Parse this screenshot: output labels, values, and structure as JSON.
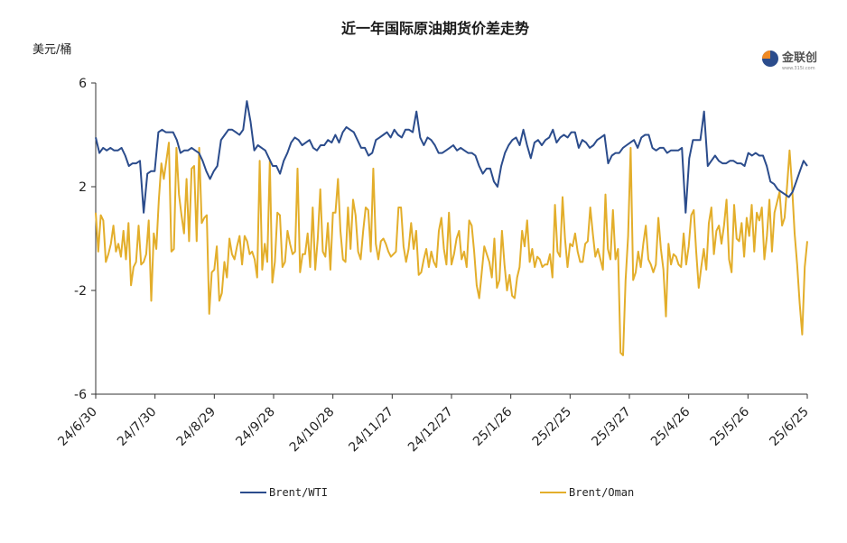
{
  "chart_data": {
    "type": "line",
    "title": "近一年国际原油期货价差走势",
    "ylabel": "美元/桶",
    "ylim": [
      -6,
      6
    ],
    "yticks": [
      6,
      2,
      -2,
      -6
    ],
    "xlabel": "",
    "x_tick_labels": [
      "24/6/30",
      "24/7/30",
      "24/8/29",
      "24/9/28",
      "24/10/28",
      "24/11/27",
      "24/12/27",
      "25/1/26",
      "25/2/25",
      "25/3/27",
      "25/4/26",
      "25/5/26",
      "25/6/25"
    ],
    "legend_position": "bottom",
    "grid": false,
    "series": [
      {
        "name": "Brent/WTI",
        "color": "#2B4C8C",
        "values": [
          3.9,
          3.3,
          3.5,
          3.4,
          3.5,
          3.4,
          3.4,
          3.5,
          3.2,
          2.8,
          2.9,
          2.9,
          3.0,
          1.0,
          2.5,
          2.6,
          2.6,
          4.1,
          4.2,
          4.1,
          4.1,
          4.1,
          3.8,
          3.3,
          3.4,
          3.4,
          3.5,
          3.4,
          3.3,
          3.0,
          2.6,
          2.3,
          2.6,
          2.8,
          3.8,
          4.0,
          4.2,
          4.2,
          4.1,
          4.0,
          4.2,
          5.3,
          4.5,
          3.4,
          3.6,
          3.5,
          3.4,
          3.1,
          2.8,
          2.8,
          2.5,
          3.0,
          3.3,
          3.7,
          3.9,
          3.8,
          3.6,
          3.7,
          3.8,
          3.5,
          3.4,
          3.6,
          3.6,
          3.8,
          3.7,
          4.0,
          3.7,
          4.1,
          4.3,
          4.2,
          4.1,
          3.8,
          3.5,
          3.5,
          3.2,
          3.3,
          3.8,
          3.9,
          4.0,
          4.1,
          3.9,
          4.2,
          4.0,
          3.9,
          4.2,
          4.2,
          4.1,
          4.9,
          3.9,
          3.6,
          3.9,
          3.8,
          3.6,
          3.3,
          3.3,
          3.4,
          3.5,
          3.6,
          3.4,
          3.5,
          3.4,
          3.3,
          3.3,
          3.2,
          2.8,
          2.5,
          2.7,
          2.7,
          2.2,
          2.0,
          2.8,
          3.3,
          3.6,
          3.8,
          3.9,
          3.6,
          4.2,
          3.6,
          3.1,
          3.7,
          3.8,
          3.6,
          3.8,
          3.9,
          4.2,
          3.7,
          3.9,
          4.0,
          3.9,
          4.1,
          4.1,
          3.5,
          3.8,
          3.7,
          3.5,
          3.6,
          3.8,
          3.9,
          4.0,
          2.9,
          3.2,
          3.3,
          3.3,
          3.5,
          3.6,
          3.7,
          3.8,
          3.5,
          3.9,
          4.0,
          4.0,
          3.5,
          3.4,
          3.5,
          3.5,
          3.3,
          3.4,
          3.4,
          3.4,
          3.5,
          1.0,
          3.1,
          3.8,
          3.8,
          3.8,
          4.9,
          2.8,
          3.0,
          3.2,
          3.0,
          2.9,
          2.9,
          3.0,
          3.0,
          2.9,
          2.9,
          2.8,
          3.3,
          3.2,
          3.3,
          3.2,
          3.2,
          2.8,
          2.2,
          2.1,
          1.9,
          1.8,
          1.7,
          1.6,
          1.8,
          2.2,
          2.6,
          3.0,
          2.8
        ]
      },
      {
        "name": "Brent/Oman",
        "color": "#E3AE2B",
        "values": [
          1.0,
          -0.5,
          0.9,
          0.7,
          -0.9,
          -0.6,
          -0.2,
          0.5,
          -0.5,
          -0.2,
          -0.7,
          0.3,
          -0.8,
          0.6,
          -1.8,
          -1.1,
          -0.9,
          0.5,
          -1.0,
          -0.9,
          -0.6,
          0.7,
          -2.4,
          0.2,
          -0.4,
          1.5,
          2.9,
          2.3,
          3.0,
          3.7,
          -0.5,
          -0.4,
          3.5,
          1.7,
          0.9,
          0.2,
          2.3,
          -0.1,
          2.7,
          2.8,
          -0.1,
          3.5,
          0.6,
          0.8,
          0.9,
          -2.9,
          -1.3,
          -1.2,
          -0.3,
          -2.4,
          -2.1,
          -0.9,
          -1.5,
          0.0,
          -0.6,
          -0.8,
          -0.3,
          0.1,
          -1.0,
          0.1,
          -0.1,
          -0.6,
          -0.5,
          -0.8,
          -1.5,
          3.0,
          -1.2,
          -0.2,
          -0.9,
          3.0,
          -1.7,
          -0.9,
          1.0,
          0.9,
          -1.1,
          -0.9,
          0.3,
          -0.2,
          -0.6,
          -0.5,
          2.7,
          -1.3,
          -0.6,
          -0.6,
          0.2,
          -1.1,
          1.2,
          -1.2,
          0.0,
          1.9,
          -0.5,
          -0.7,
          0.6,
          -1.2,
          1.0,
          1.0,
          2.3,
          0.3,
          -0.8,
          -0.9,
          1.2,
          -0.4,
          1.5,
          0.9,
          -0.5,
          -0.8,
          0.3,
          1.2,
          1.1,
          -0.5,
          2.7,
          -0.2,
          -0.8,
          -0.1,
          0.0,
          -0.2,
          -0.5,
          -0.7,
          -0.6,
          -0.5,
          1.2,
          1.2,
          -0.3,
          -0.9,
          -0.4,
          0.6,
          -0.4,
          0.3,
          -1.4,
          -1.3,
          -0.8,
          -0.4,
          -1.1,
          -0.5,
          -0.9,
          -1.1,
          0.3,
          0.8,
          -0.4,
          -1.0,
          1.0,
          -1.0,
          -0.6,
          0.0,
          0.3,
          -0.8,
          -0.5,
          -1.1,
          0.7,
          0.5,
          -0.5,
          -1.8,
          -2.3,
          -1.3,
          -0.3,
          -0.6,
          -0.9,
          -1.5,
          0.0,
          -1.9,
          -1.6,
          0.3,
          -1.0,
          -2.0,
          -1.4,
          -2.2,
          -2.3,
          -1.5,
          -1.1,
          0.3,
          -0.3,
          0.7,
          -0.9,
          -0.4,
          -1.1,
          -0.7,
          -0.8,
          -1.1,
          -1.0,
          -1.0,
          -0.6,
          -1.5,
          1.3,
          -0.5,
          -0.7,
          1.6,
          0.0,
          -1.1,
          -0.2,
          -0.3,
          0.2,
          -0.5,
          -0.9,
          -0.9,
          -0.2,
          -0.1,
          1.2,
          0.2,
          -0.7,
          -0.4,
          -0.8,
          -1.2,
          1.7,
          -0.4,
          -0.8,
          1.1,
          -0.8,
          -0.4,
          -4.4,
          -4.5,
          -1.6,
          0.1,
          3.5,
          -1.6,
          -1.3,
          -0.5,
          -1.1,
          -0.2,
          0.5,
          -0.8,
          -1.0,
          -1.3,
          -1.0,
          0.8,
          -0.4,
          -1.2,
          -3.0,
          -0.2,
          -1.0,
          -0.6,
          -0.7,
          -1.0,
          -1.1,
          0.2,
          -1.0,
          -0.3,
          0.9,
          1.1,
          -0.5,
          -1.9,
          -1.1,
          -0.4,
          -1.2,
          0.6,
          1.2,
          -0.6,
          0.3,
          0.5,
          -0.2,
          0.5,
          1.5,
          -0.8,
          -1.3,
          1.3,
          0.0,
          -0.1,
          0.6,
          -0.7,
          0.8,
          0.1,
          1.3,
          -0.5,
          1.0,
          0.7,
          1.2,
          -0.8,
          0.1,
          1.5,
          -0.5,
          1.0,
          1.4,
          1.8,
          0.5,
          0.8,
          2.0,
          3.4,
          2.0,
          0.2,
          -1.0,
          -2.5,
          -3.7,
          -1.1,
          -0.1
        ]
      }
    ]
  },
  "logo": {
    "name": "金联创",
    "sub": "www.315i.com"
  }
}
